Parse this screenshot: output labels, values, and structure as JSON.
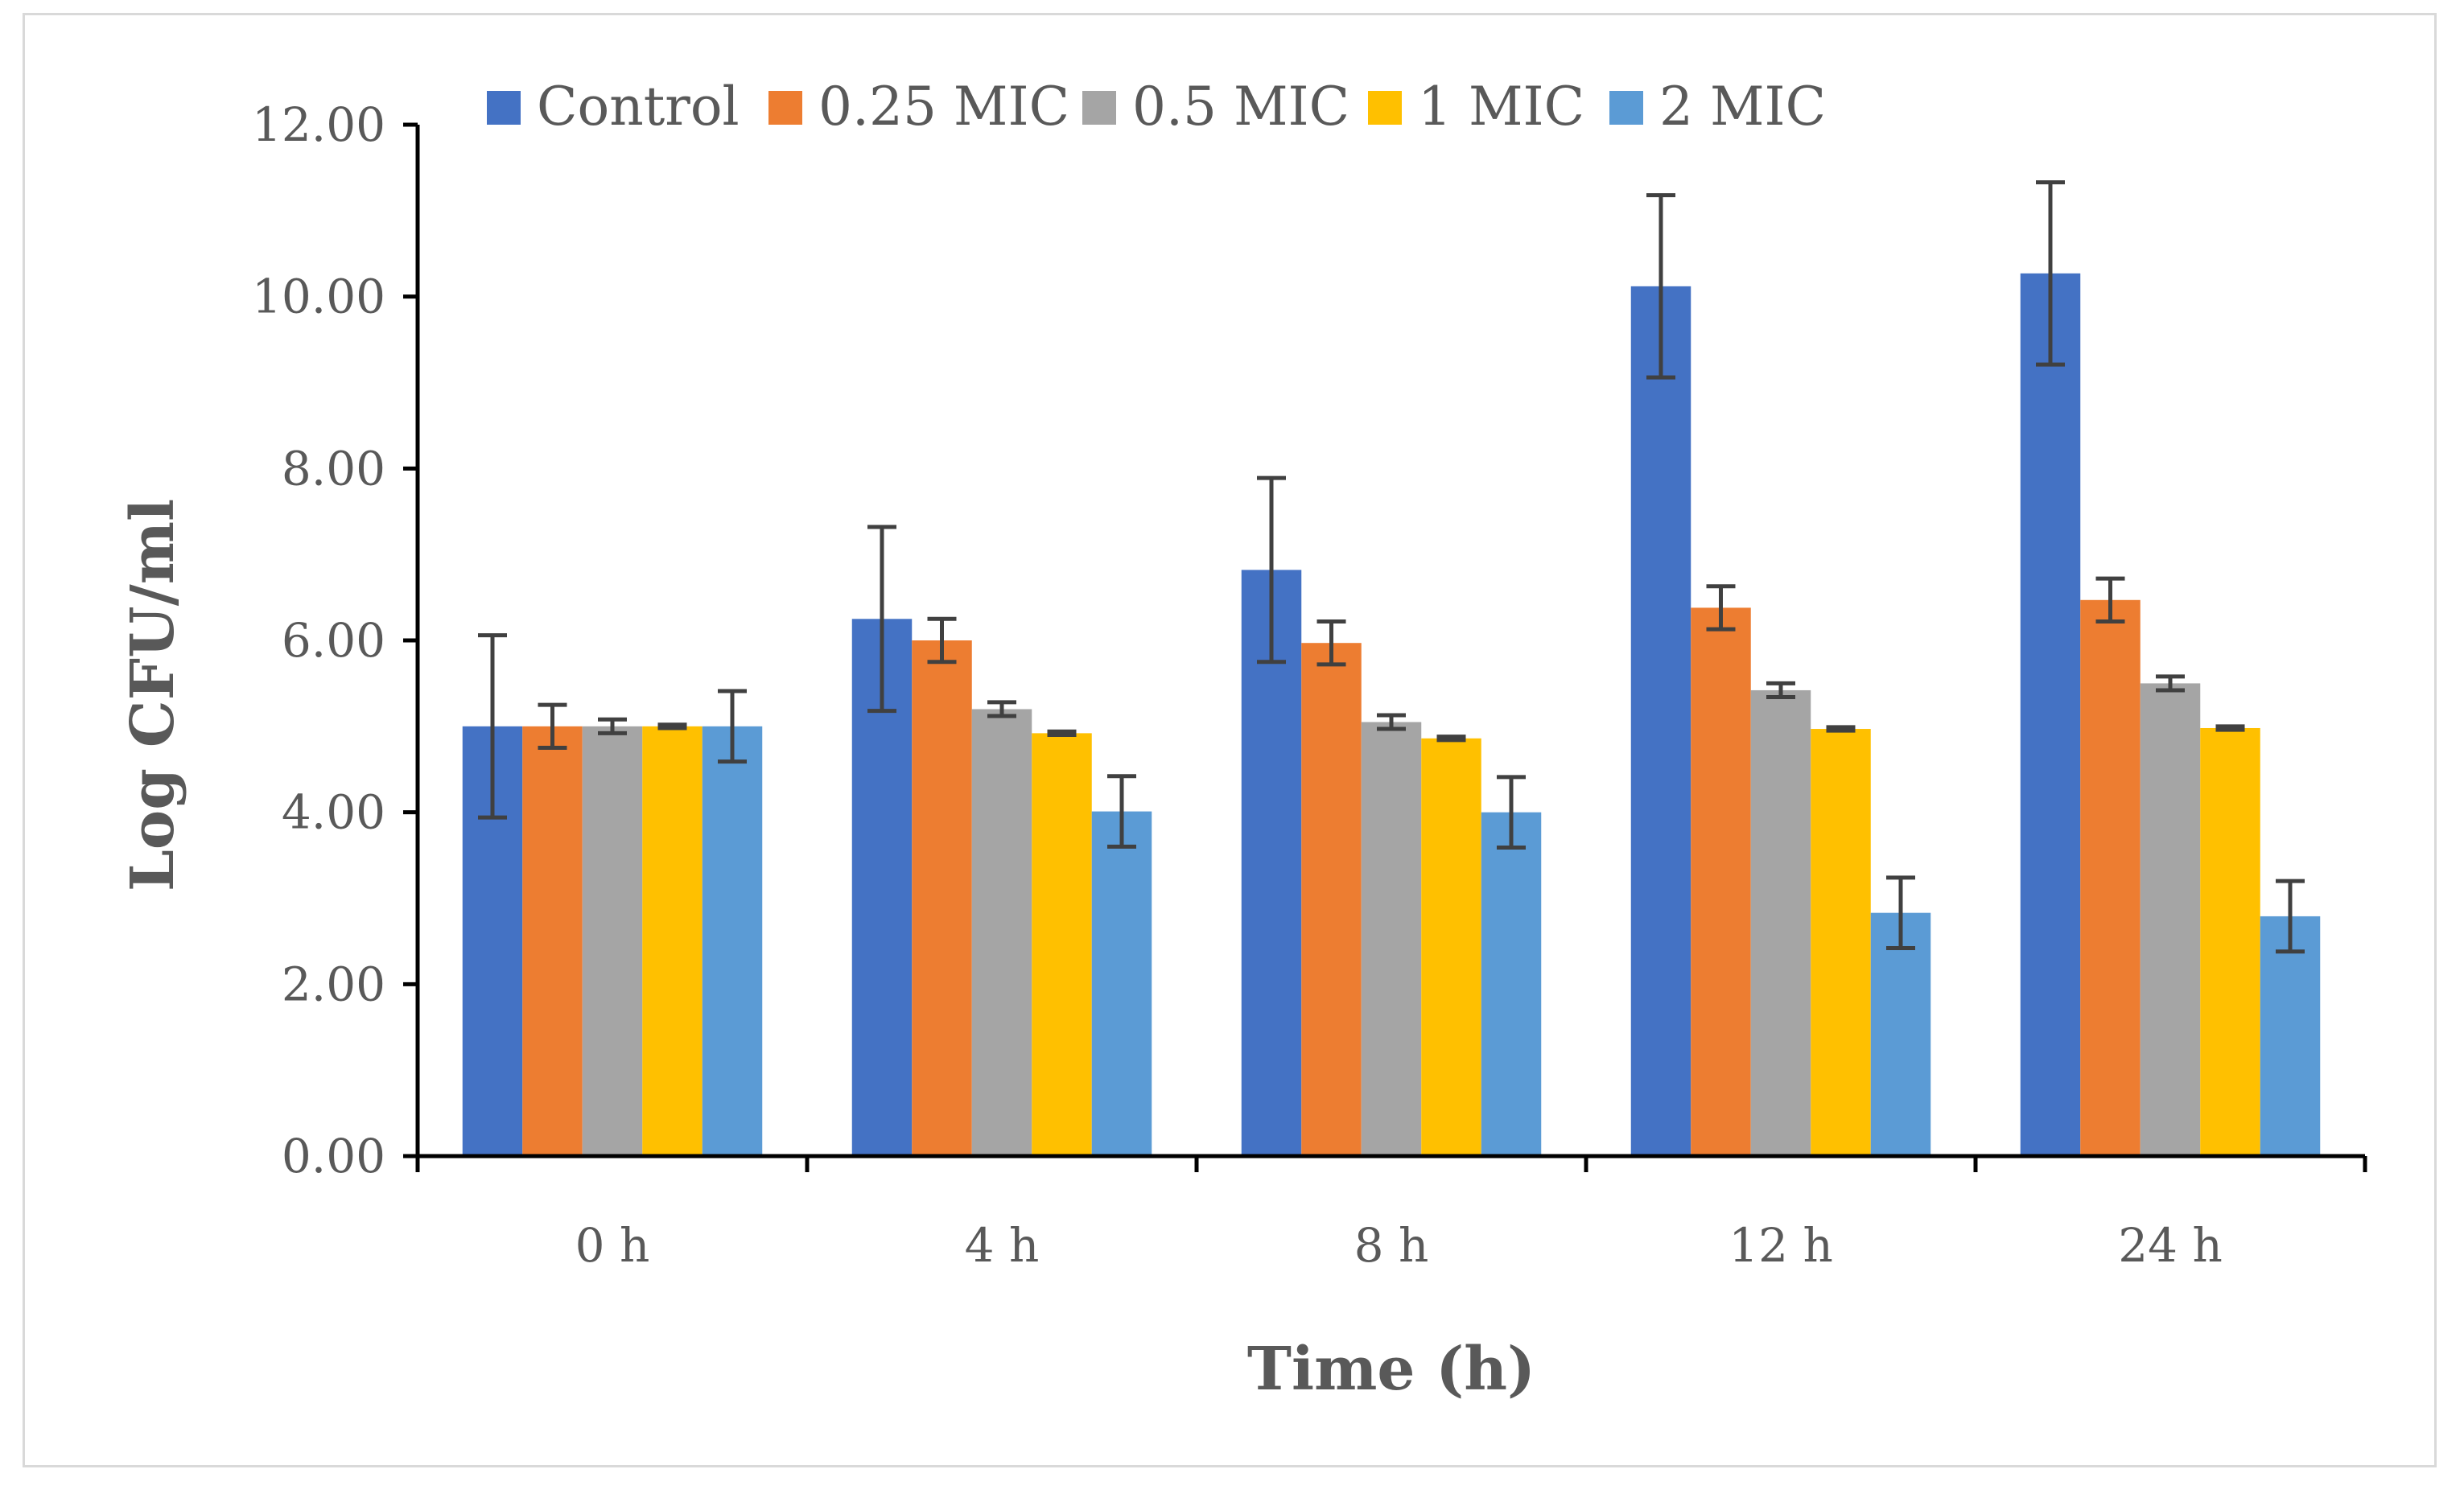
{
  "chart_data": {
    "type": "bar",
    "title": "",
    "xlabel": "Time (h)",
    "ylabel": "Log CFU/ml",
    "ylim": [
      0,
      12
    ],
    "yticks": [
      "0.00",
      "2.00",
      "4.00",
      "6.00",
      "8.00",
      "10.00",
      "12.00"
    ],
    "ytick_values": [
      0,
      2,
      4,
      6,
      8,
      10,
      12
    ],
    "grid": false,
    "legend_position": "top",
    "categories": [
      "0 h",
      "4 h",
      "8 h",
      "12 h",
      "24 h"
    ],
    "series": [
      {
        "name": "Control",
        "color": "#4472C4",
        "values": [
          5.0,
          6.25,
          6.82,
          10.12,
          10.27
        ],
        "errors": [
          1.06,
          1.07,
          1.07,
          1.06,
          1.06
        ]
      },
      {
        "name": "0.25 MIC",
        "color": "#ED7D31",
        "values": [
          5.0,
          6.0,
          5.97,
          6.38,
          6.47
        ],
        "errors": [
          0.25,
          0.25,
          0.25,
          0.25,
          0.25
        ]
      },
      {
        "name": "0.5 MIC",
        "color": "#A5A5A5",
        "values": [
          5.0,
          5.2,
          5.05,
          5.42,
          5.5
        ],
        "errors": [
          0.08,
          0.08,
          0.08,
          0.08,
          0.08
        ]
      },
      {
        "name": "1 MIC",
        "color": "#FFC000",
        "values": [
          5.0,
          4.92,
          4.86,
          4.97,
          4.98
        ],
        "errors": [
          0.02,
          0.02,
          0.02,
          0.02,
          0.02
        ]
      },
      {
        "name": "2 MIC",
        "color": "#5B9BD5",
        "values": [
          5.0,
          4.01,
          4.0,
          2.83,
          2.79
        ],
        "errors": [
          0.41,
          0.41,
          0.41,
          0.41,
          0.41
        ]
      }
    ]
  }
}
